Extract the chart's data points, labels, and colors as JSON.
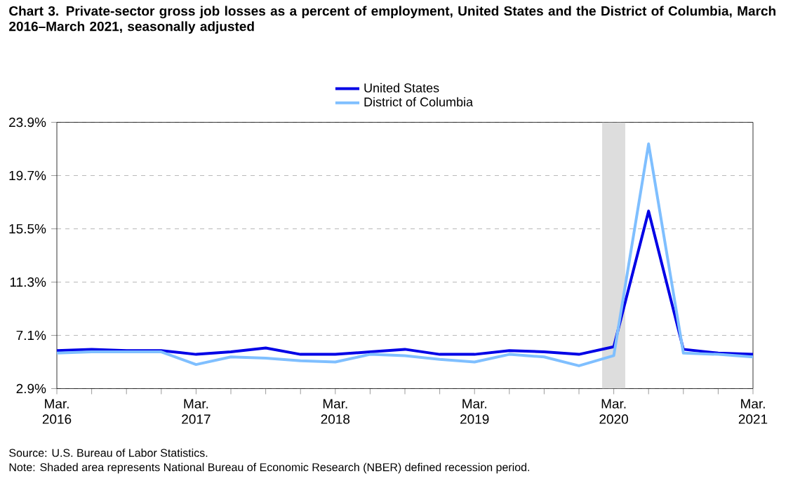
{
  "chart_data": {
    "type": "line",
    "title": "Chart 3. Private-sector gross job losses as a percent of employment, United States and the District of Columbia, March 2016–March 2021, seasonally adjusted",
    "x": [
      "2016-03",
      "2016-06",
      "2016-09",
      "2016-12",
      "2017-03",
      "2017-06",
      "2017-09",
      "2017-12",
      "2018-03",
      "2018-06",
      "2018-09",
      "2018-12",
      "2019-03",
      "2019-06",
      "2019-09",
      "2019-12",
      "2020-03",
      "2020-06",
      "2020-09",
      "2020-12",
      "2021-03"
    ],
    "series": [
      {
        "name": "United States",
        "color": "#0000e6",
        "values": [
          5.9,
          6.0,
          5.9,
          5.9,
          5.6,
          5.8,
          6.1,
          5.6,
          5.6,
          5.8,
          6.0,
          5.6,
          5.6,
          5.9,
          5.8,
          5.6,
          6.2,
          16.9,
          6.0,
          5.7,
          5.6
        ]
      },
      {
        "name": "District of Columbia",
        "color": "#7fbfff",
        "values": [
          5.7,
          5.8,
          5.8,
          5.8,
          4.8,
          5.4,
          5.3,
          5.1,
          5.0,
          5.6,
          5.5,
          5.2,
          5.0,
          5.6,
          5.4,
          4.7,
          5.5,
          22.2,
          5.7,
          5.6,
          5.4
        ]
      }
    ],
    "xlim": [
      "2016-03",
      "2021-03"
    ],
    "xticks": [
      {
        "value": "2016-03",
        "label": "Mar. 2016"
      },
      {
        "value": "2016-06",
        "label": null
      },
      {
        "value": "2016-09",
        "label": null
      },
      {
        "value": "2016-12",
        "label": null
      },
      {
        "value": "2017-03",
        "label": "Mar. 2017"
      },
      {
        "value": "2017-06",
        "label": null
      },
      {
        "value": "2017-09",
        "label": null
      },
      {
        "value": "2017-12",
        "label": null
      },
      {
        "value": "2018-03",
        "label": "Mar. 2018"
      },
      {
        "value": "2018-06",
        "label": null
      },
      {
        "value": "2018-09",
        "label": null
      },
      {
        "value": "2018-12",
        "label": null
      },
      {
        "value": "2019-03",
        "label": "Mar. 2019"
      },
      {
        "value": "2019-06",
        "label": null
      },
      {
        "value": "2019-09",
        "label": null
      },
      {
        "value": "2019-12",
        "label": null
      },
      {
        "value": "2020-03",
        "label": "Mar. 2020"
      },
      {
        "value": "2020-06",
        "label": null
      },
      {
        "value": "2020-09",
        "label": null
      },
      {
        "value": "2020-12",
        "label": null
      },
      {
        "value": "2021-03",
        "label": "Mar. 2021"
      }
    ],
    "ylim": [
      2.9,
      23.9
    ],
    "yticks": [
      {
        "value": 2.9,
        "label": "2.9%"
      },
      {
        "value": 7.1,
        "label": "7.1%"
      },
      {
        "value": 11.3,
        "label": "11.3%"
      },
      {
        "value": 15.5,
        "label": "15.5%"
      },
      {
        "value": 19.7,
        "label": "19.7%"
      },
      {
        "value": 23.9,
        "label": "23.9%"
      }
    ],
    "bands": [
      {
        "axis": "x",
        "from": "2020-02",
        "to": "2020-04",
        "color": "#dddddd"
      }
    ],
    "grid": "y",
    "line_style": "solid",
    "legend": "top",
    "annotations": [
      "Source: U.S. Bureau of Labor Statistics.",
      "Note: Shaded area represents National Bureau of Economic Research (NBER) defined recession period."
    ]
  }
}
